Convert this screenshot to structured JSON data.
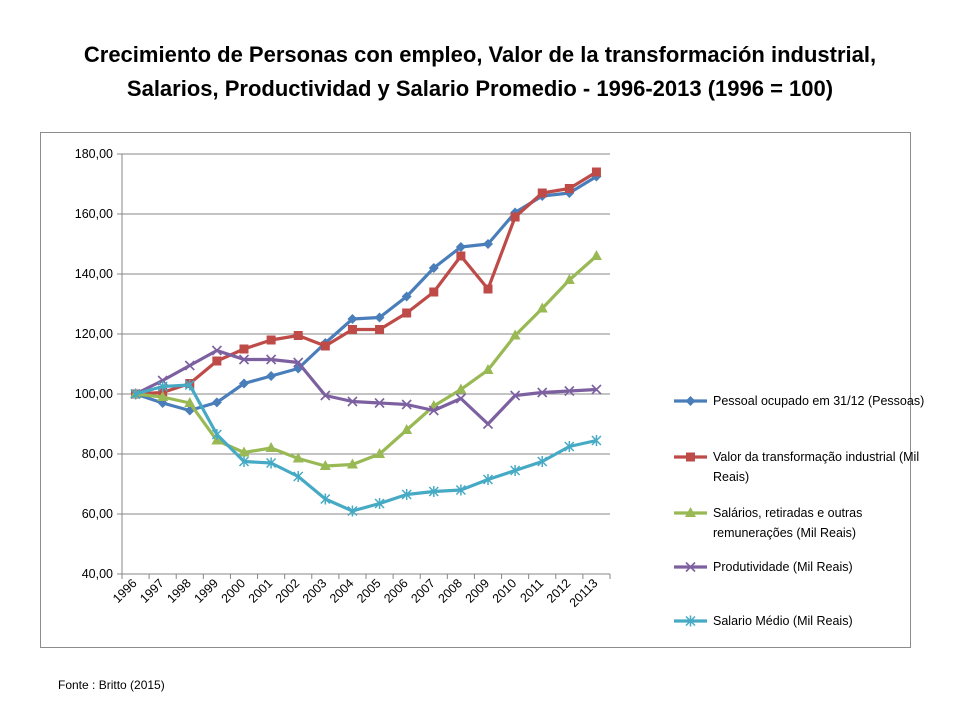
{
  "title_line1": "Crecimiento de Personas con empleo, Valor de la transformación industrial,",
  "title_line2": "Salarios, Productividad y Salario Promedio - 1996-2013 (1996 = 100)",
  "source": "Fonte : Britto (2015)",
  "chart_data": {
    "type": "line",
    "title": "Crecimiento de Personas con empleo, Valor de la transformación industrial, Salarios, Productividad y Salario Promedio - 1996-2013 (1996 = 100)",
    "categories": [
      "1996",
      "1997",
      "1998",
      "1999",
      "2000",
      "2001",
      "2002",
      "2003",
      "2004",
      "2005",
      "2006",
      "2007",
      "2008",
      "2009",
      "2010",
      "2011",
      "2012",
      "20113"
    ],
    "ylim": [
      40,
      180
    ],
    "yticks": [
      "40,00",
      "60,00",
      "80,00",
      "100,00",
      "120,00",
      "140,00",
      "160,00",
      "180,00"
    ],
    "grid": "horizontal",
    "legend_position": "right",
    "series": [
      {
        "name": "Pessoal ocupado em 31/12 (Pessoas)",
        "label_lines": [
          "Pessoal ocupado em 31/12 (Pessoas)"
        ],
        "color": "#4a7ebb",
        "marker": "diamond",
        "values": [
          100,
          97,
          94.5,
          97.2,
          103.5,
          106,
          108.5,
          117,
          125,
          125.5,
          132.5,
          142,
          149,
          150,
          160.5,
          166,
          167,
          172.5
        ]
      },
      {
        "name": "Valor da transformação industrial (Mil Reais)",
        "label_lines": [
          "Valor da transformação industrial (Mil",
          "Reais)"
        ],
        "color": "#be4b48",
        "marker": "square",
        "values": [
          100,
          100.5,
          103.5,
          111,
          115,
          118,
          119.5,
          116,
          121.5,
          121.5,
          127,
          134,
          146,
          135,
          159,
          167,
          168.5,
          174
        ]
      },
      {
        "name": "Salários, retiradas e outras remunerações (Mil Reais)",
        "label_lines": [
          "Salários, retiradas e outras",
          "remunerações (Mil Reais)"
        ],
        "color": "#98b954",
        "marker": "triangle",
        "values": [
          100,
          99,
          97,
          84.5,
          80.5,
          82,
          78.5,
          76,
          76.5,
          80,
          88,
          96,
          101.5,
          108,
          119.5,
          128.5,
          138,
          146
        ]
      },
      {
        "name": "Produtividade (Mil Reais)",
        "label_lines": [
          "Produtividade  (Mil Reais)"
        ],
        "color": "#7d60a0",
        "marker": "x",
        "values": [
          100,
          104.5,
          109.5,
          114.5,
          111.5,
          111.5,
          110.5,
          99.5,
          97.5,
          97,
          96.5,
          94.5,
          98.5,
          90,
          99.5,
          100.5,
          101,
          101.5
        ]
      },
      {
        "name": "Salario Médio (Mil Reais)",
        "label_lines": [
          "Salario Médio  (Mil Reais)"
        ],
        "color": "#46aac5",
        "marker": "star",
        "values": [
          100,
          102.5,
          103,
          86.5,
          77.5,
          77,
          72.5,
          65,
          61,
          63.5,
          66.5,
          67.5,
          68,
          71.5,
          74.5,
          77.5,
          82.5,
          84.5
        ]
      }
    ]
  }
}
